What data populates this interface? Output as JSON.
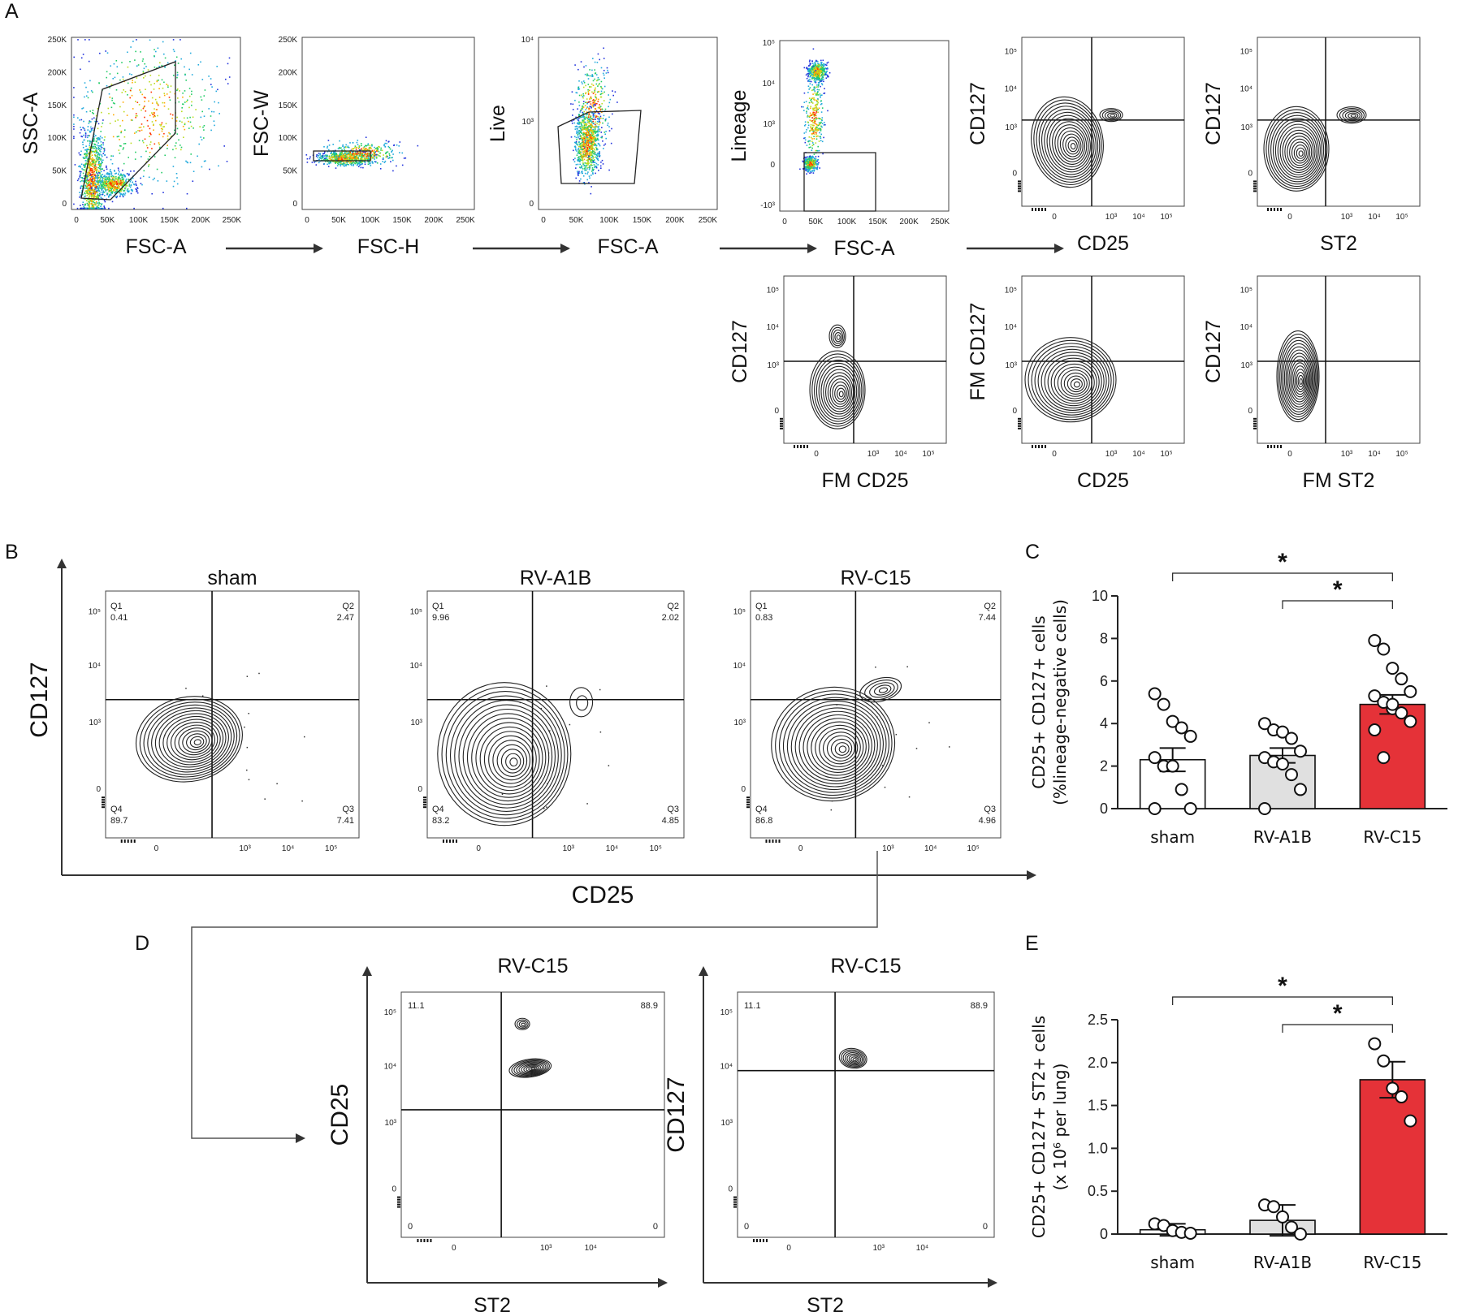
{
  "colors": {
    "sham": "#ffffff",
    "rva1b": "#e0e0e0",
    "rvc15": "#e53238",
    "axis": "#333333",
    "dot_blue": "#2636d6"
  },
  "panels": {
    "A": "A",
    "B": "B",
    "C": "C",
    "D": "D",
    "E": "E"
  },
  "panelA": {
    "gating": [
      {
        "ylabel": "SSC-A",
        "xlabel": "FSC-A",
        "yticks": [
          "250K",
          "200K",
          "150K",
          "100K",
          "50K",
          "0"
        ],
        "xticks": [
          "0",
          "50K",
          "100K",
          "150K",
          "200K",
          "250K"
        ]
      },
      {
        "ylabel": "FSC-W",
        "xlabel": "FSC-H",
        "yticks": [
          "250K",
          "200K",
          "150K",
          "100K",
          "50K",
          "0"
        ],
        "xticks": [
          "0",
          "50K",
          "100K",
          "150K",
          "200K",
          "250K"
        ]
      },
      {
        "ylabel": "Live",
        "xlabel": "FSC-A",
        "yticks": [
          "10⁴",
          "10³",
          "0"
        ],
        "xticks": [
          "0",
          "50K",
          "100K",
          "150K",
          "200K",
          "250K"
        ]
      },
      {
        "ylabel": "Lineage",
        "xlabel": "FSC-A",
        "yticks": [
          "10⁵",
          "10⁴",
          "10³",
          "0",
          "-10³"
        ],
        "xticks": [
          "0",
          "50K",
          "100K",
          "150K",
          "200K",
          "250K"
        ]
      }
    ],
    "quadrants": [
      {
        "ylabel": "CD127",
        "xlabel": "CD25"
      },
      {
        "ylabel": "CD127",
        "xlabel": "ST2"
      },
      {
        "ylabel": "CD127",
        "xlabel": "FM CD25"
      },
      {
        "ylabel": "FM CD127",
        "xlabel": "CD25"
      },
      {
        "ylabel": "CD127",
        "xlabel": "FM ST2"
      }
    ],
    "log_yticks": [
      "10⁵",
      "10⁴",
      "10³",
      "0"
    ],
    "log_xticks": [
      "0",
      "10³",
      "10⁴",
      "10⁵"
    ]
  },
  "panelB": {
    "ylabel": "CD127",
    "xlabel": "CD25",
    "plots": [
      {
        "title": "sham",
        "q1": "0.41",
        "q2": "2.47",
        "q3": "7.41",
        "q4": "89.7"
      },
      {
        "title": "RV-A1B",
        "q1": "9.96",
        "q2": "2.02",
        "q3": "4.85",
        "q4": "83.2"
      },
      {
        "title": "RV-C15",
        "q1": "0.83",
        "q2": "7.44",
        "q3": "4.96",
        "q4": "86.8"
      }
    ],
    "qlabels": {
      "q1": "Q1",
      "q2": "Q2",
      "q3": "Q3",
      "q4": "Q4"
    }
  },
  "panelD": {
    "plots": [
      {
        "title": "RV-C15",
        "ylabel": "CD25",
        "xlabel": "ST2",
        "ul": "11.1",
        "ur": "88.9",
        "ll": "0",
        "lr": "0"
      },
      {
        "title": "RV-C15",
        "ylabel": "CD127",
        "xlabel": "ST2",
        "ul": "11.1",
        "ur": "88.9",
        "ll": "0",
        "lr": "0"
      }
    ]
  },
  "chart_data": [
    {
      "id": "C",
      "type": "bar",
      "categories": [
        "sham",
        "RV-A1B",
        "RV-C15"
      ],
      "values": [
        2.3,
        2.5,
        4.9
      ],
      "sem": [
        0.55,
        0.35,
        0.45
      ],
      "points": [
        [
          5.4,
          4.9,
          4.1,
          3.8,
          3.4,
          2.4,
          2.0,
          2.0,
          0.9,
          0.0,
          0.0
        ],
        [
          4.0,
          3.7,
          3.6,
          3.3,
          2.7,
          2.4,
          2.2,
          2.1,
          1.6,
          0.9,
          0.0
        ],
        [
          7.9,
          7.5,
          6.6,
          6.1,
          5.5,
          5.3,
          5.0,
          4.7,
          4.5,
          4.1,
          3.7,
          2.4,
          4.9
        ]
      ],
      "ylabel": "CD25+ CD127+ cells\n(%lineage-negative cells)",
      "ylabel_lines": [
        "CD25+ CD127+ cells",
        "(%lineage-negative cells)"
      ],
      "ylim": [
        0,
        10
      ],
      "yticks": [
        "0",
        "2",
        "4",
        "6",
        "8",
        "10"
      ],
      "significance": [
        {
          "from": "sham",
          "to": "RV-C15",
          "label": "*"
        },
        {
          "from": "RV-A1B",
          "to": "RV-C15",
          "label": "*"
        }
      ]
    },
    {
      "id": "E",
      "type": "bar",
      "categories": [
        "sham",
        "RV-A1B",
        "RV-C15"
      ],
      "values": [
        0.05,
        0.16,
        1.8
      ],
      "sd": [
        0.07,
        0.18,
        0.21
      ],
      "points": [
        [
          0.12,
          0.1,
          0.04,
          0.02,
          0.01
        ],
        [
          0.34,
          0.32,
          0.2,
          0.08,
          0.0
        ],
        [
          2.22,
          2.02,
          1.7,
          1.6,
          1.32
        ]
      ],
      "ylabel_lines": [
        "CD25+ CD127+ ST2+ cells",
        "(x 10⁶ per lung)"
      ],
      "ylim": [
        0,
        2.5
      ],
      "yticks": [
        "0",
        "0.5",
        "1.0",
        "1.5",
        "2.0",
        "2.5"
      ],
      "significance": [
        {
          "from": "sham",
          "to": "RV-C15",
          "label": "*"
        },
        {
          "from": "RV-A1B",
          "to": "RV-C15",
          "label": "*"
        }
      ]
    }
  ]
}
